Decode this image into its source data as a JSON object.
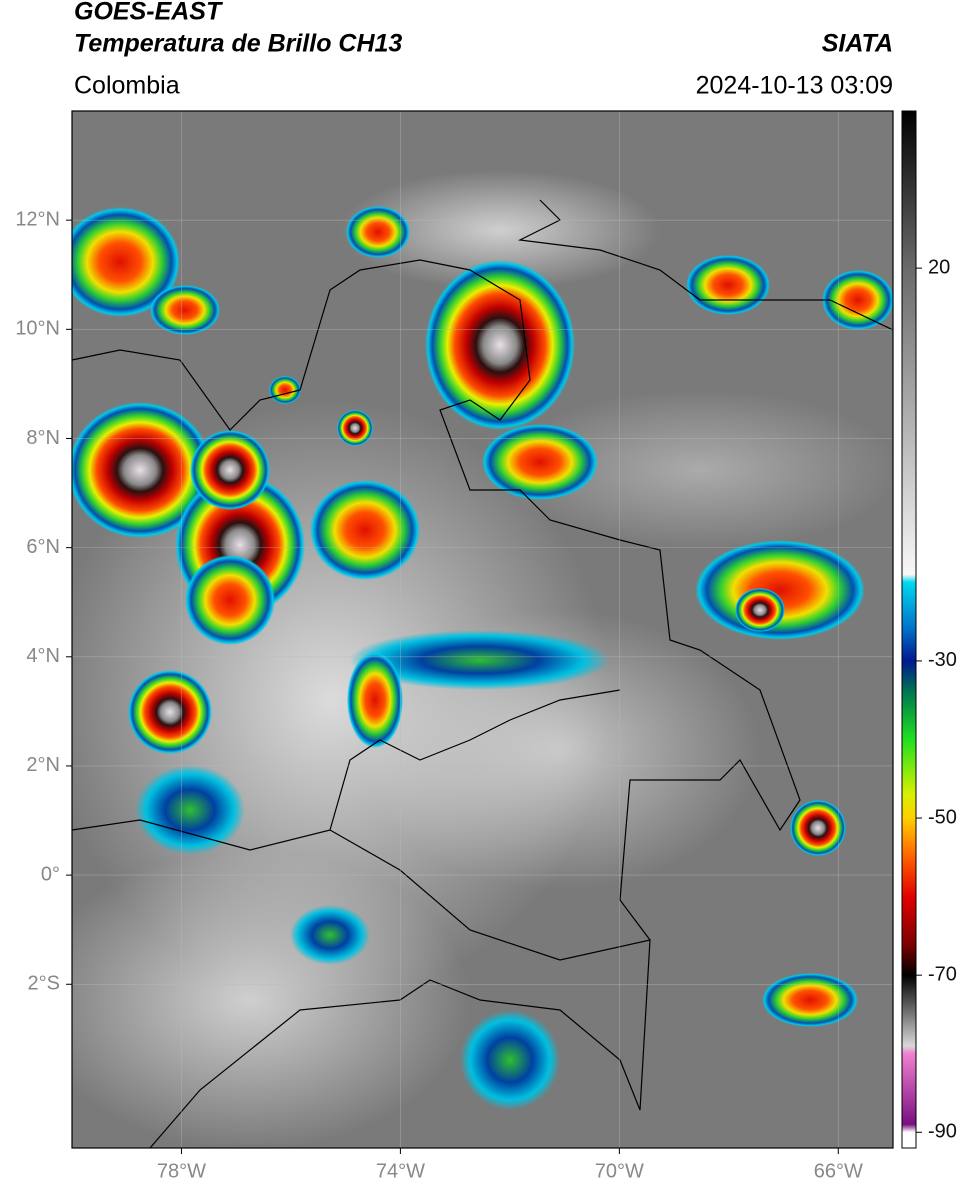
{
  "header": {
    "title": "GOES-EAST",
    "subtitle": "Temperatura de Brillo CH13",
    "source": "SIATA",
    "region": "Colombia",
    "datetime": "2024-10-13 03:09"
  },
  "map": {
    "xlim": [
      -80,
      -65
    ],
    "ylim": [
      -5,
      14
    ],
    "xticks": [
      {
        "value": -78,
        "label": "78°W"
      },
      {
        "value": -74,
        "label": "74°W"
      },
      {
        "value": -70,
        "label": "70°W"
      },
      {
        "value": -66,
        "label": "66°W"
      }
    ],
    "yticks": [
      {
        "value": 12,
        "label": "12°N"
      },
      {
        "value": 10,
        "label": "10°N"
      },
      {
        "value": 8,
        "label": "8°N"
      },
      {
        "value": 6,
        "label": "6°N"
      },
      {
        "value": 4,
        "label": "4°N"
      },
      {
        "value": 2,
        "label": "2°N"
      },
      {
        "value": 0,
        "label": "0°"
      },
      {
        "value": -2,
        "label": "2°S"
      }
    ],
    "grid": true
  },
  "colorbar": {
    "lim": [
      -92,
      40
    ],
    "ticks": [
      20,
      -30,
      -50,
      -70,
      -90
    ],
    "stops": [
      {
        "value": 40,
        "color": "#000000"
      },
      {
        "value": 20,
        "color": "#6a6a6a"
      },
      {
        "value": -19,
        "color": "#f8f8f8"
      },
      {
        "value": -20,
        "color": "#00d8f0"
      },
      {
        "value": -26,
        "color": "#0070c8"
      },
      {
        "value": -30,
        "color": "#001890"
      },
      {
        "value": -34,
        "color": "#007850"
      },
      {
        "value": -40,
        "color": "#20e020"
      },
      {
        "value": -47,
        "color": "#d8f000"
      },
      {
        "value": -50,
        "color": "#ffd000"
      },
      {
        "value": -55,
        "color": "#ff6000"
      },
      {
        "value": -60,
        "color": "#e00000"
      },
      {
        "value": -66,
        "color": "#800000"
      },
      {
        "value": -70,
        "color": "#000000"
      },
      {
        "value": -79,
        "color": "#d8d8d8"
      },
      {
        "value": -80,
        "color": "#f080d0"
      },
      {
        "value": -89,
        "color": "#7a1080"
      },
      {
        "value": -90,
        "color": "#ffffff"
      },
      {
        "value": -92,
        "color": "#ffffff"
      }
    ]
  }
}
